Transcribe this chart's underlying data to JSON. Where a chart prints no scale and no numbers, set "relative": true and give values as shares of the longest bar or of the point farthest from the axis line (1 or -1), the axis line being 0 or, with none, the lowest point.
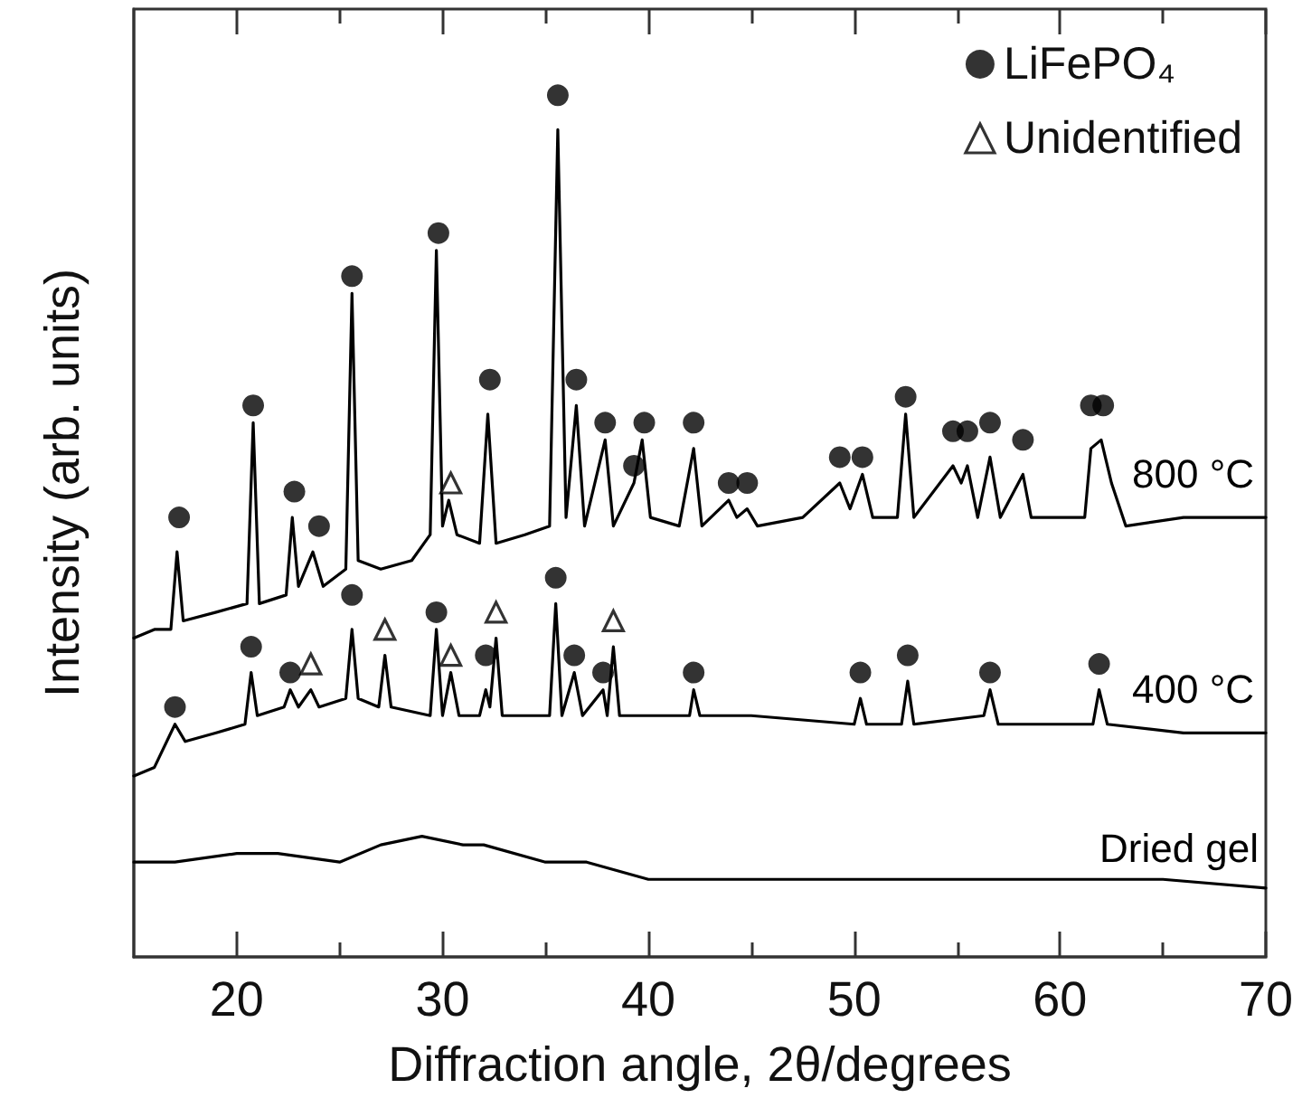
{
  "chart_data": {
    "type": "line",
    "xlabel": "Diffraction angle, 2θ/degrees",
    "ylabel": "Intensity (arb. units)",
    "relative": true,
    "xlim": [
      15,
      70
    ],
    "xticks": [
      20,
      {
        "value": 25,
        "label": null
      },
      30,
      {
        "value": 35,
        "label": null
      },
      40,
      {
        "value": 45,
        "label": null
      },
      50,
      {
        "value": 55,
        "label": null
      },
      60,
      {
        "value": 65,
        "label": null
      },
      70
    ],
    "grid": false,
    "legend": "top right",
    "line_style": "solid",
    "marker": "none",
    "series": [
      {
        "name": "800 °C",
        "color": "#000000",
        "x": [
          15,
          16,
          16.8,
          17.1,
          17.4,
          19,
          20.5,
          20.8,
          21.1,
          22.4,
          22.7,
          23.0,
          23.7,
          24.2,
          25.3,
          25.6,
          25.9,
          27,
          28.5,
          29.4,
          29.7,
          30.0,
          30.3,
          30.7,
          31.8,
          32.2,
          32.6,
          34,
          35.2,
          35.6,
          36.0,
          36.5,
          36.9,
          37.9,
          38.3,
          39.3,
          39.7,
          40.1,
          41.5,
          42.2,
          42.6,
          43.9,
          44.3,
          44.8,
          45.3,
          47.5,
          49.3,
          49.8,
          50.4,
          50.9,
          52.1,
          52.5,
          52.9,
          54.8,
          55.2,
          55.5,
          56.0,
          56.6,
          57.1,
          58.2,
          58.6,
          61.2,
          61.5,
          62.0,
          62.5,
          63.2,
          66,
          70
        ],
        "values": [
          0.37,
          0.38,
          0.38,
          0.47,
          0.39,
          0.4,
          0.41,
          0.62,
          0.41,
          0.42,
          0.51,
          0.43,
          0.47,
          0.43,
          0.45,
          0.77,
          0.46,
          0.45,
          0.46,
          0.49,
          0.82,
          0.5,
          0.53,
          0.49,
          0.48,
          0.63,
          0.48,
          0.49,
          0.5,
          0.96,
          0.51,
          0.64,
          0.5,
          0.6,
          0.5,
          0.55,
          0.6,
          0.51,
          0.5,
          0.59,
          0.5,
          0.53,
          0.51,
          0.52,
          0.5,
          0.51,
          0.55,
          0.52,
          0.56,
          0.51,
          0.51,
          0.63,
          0.51,
          0.57,
          0.55,
          0.57,
          0.51,
          0.58,
          0.51,
          0.56,
          0.51,
          0.51,
          0.59,
          0.6,
          0.55,
          0.5,
          0.51,
          0.51
        ]
      },
      {
        "name": "400 °C",
        "color": "#000000",
        "x": [
          15,
          16,
          17.0,
          17.5,
          19,
          20.4,
          20.7,
          21.0,
          22.3,
          22.6,
          23.0,
          23.6,
          24.0,
          25.3,
          25.6,
          25.9,
          26.9,
          27.2,
          27.5,
          29.4,
          29.7,
          30.0,
          30.4,
          30.8,
          31.8,
          32.1,
          32.3,
          32.6,
          32.9,
          35.2,
          35.5,
          35.8,
          36.4,
          36.8,
          37.8,
          38.0,
          38.3,
          38.6,
          40,
          42.0,
          42.2,
          42.5,
          45,
          50.0,
          50.3,
          50.6,
          52.3,
          52.6,
          52.9,
          56.3,
          56.6,
          57.0,
          60,
          61.6,
          61.9,
          62.3,
          66,
          70
        ],
        "values": [
          0.21,
          0.22,
          0.27,
          0.25,
          0.26,
          0.27,
          0.33,
          0.28,
          0.29,
          0.31,
          0.29,
          0.31,
          0.29,
          0.3,
          0.38,
          0.3,
          0.29,
          0.35,
          0.29,
          0.28,
          0.38,
          0.28,
          0.33,
          0.28,
          0.28,
          0.31,
          0.29,
          0.37,
          0.28,
          0.28,
          0.41,
          0.28,
          0.33,
          0.28,
          0.31,
          0.28,
          0.36,
          0.28,
          0.28,
          0.28,
          0.31,
          0.28,
          0.28,
          0.27,
          0.3,
          0.27,
          0.27,
          0.32,
          0.27,
          0.28,
          0.31,
          0.27,
          0.27,
          0.27,
          0.31,
          0.27,
          0.26,
          0.26
        ]
      },
      {
        "name": "Dried gel",
        "color": "#000000",
        "x": [
          15,
          17,
          20,
          22,
          25,
          27,
          29,
          31,
          32,
          35,
          37,
          40,
          45,
          50,
          55,
          60,
          65,
          70
        ],
        "values": [
          0.11,
          0.11,
          0.12,
          0.12,
          0.11,
          0.13,
          0.14,
          0.13,
          0.13,
          0.11,
          0.11,
          0.09,
          0.09,
          0.09,
          0.09,
          0.09,
          0.09,
          0.08
        ]
      },
      {
        "name": "LiFePO₄",
        "type": "scatter",
        "marker": "circle",
        "color": "#000000",
        "x": [
          17.2,
          20.8,
          22.8,
          24.0,
          25.6,
          29.8,
          32.3,
          35.6,
          36.5,
          37.9,
          39.3,
          39.8,
          42.2,
          43.9,
          44.8,
          49.3,
          50.4,
          52.5,
          54.8,
          55.5,
          56.6,
          58.2,
          61.5,
          62.1,
          17.0,
          20.7,
          22.6,
          25.6,
          29.7,
          32.1,
          35.5,
          36.4,
          37.8,
          42.2,
          50.3,
          52.6,
          56.6,
          61.9
        ],
        "values": [
          0.51,
          0.64,
          0.54,
          0.5,
          0.79,
          0.84,
          0.67,
          1,
          0.67,
          0.62,
          0.57,
          0.62,
          0.62,
          0.55,
          0.55,
          0.58,
          0.58,
          0.65,
          0.61,
          0.61,
          0.62,
          0.6,
          0.64,
          0.64,
          0.29,
          0.36,
          0.33,
          0.42,
          0.4,
          0.35,
          0.44,
          0.35,
          0.33,
          0.33,
          0.33,
          0.35,
          0.33,
          0.34
        ]
      },
      {
        "name": "Unidentified",
        "type": "scatter",
        "marker": "triangle",
        "color": "#000000",
        "x": [
          30.4,
          23.6,
          27.2,
          30.4,
          32.6,
          38.3
        ],
        "values": [
          0.55,
          0.34,
          0.38,
          0.35,
          0.4,
          0.39
        ]
      }
    ]
  }
}
